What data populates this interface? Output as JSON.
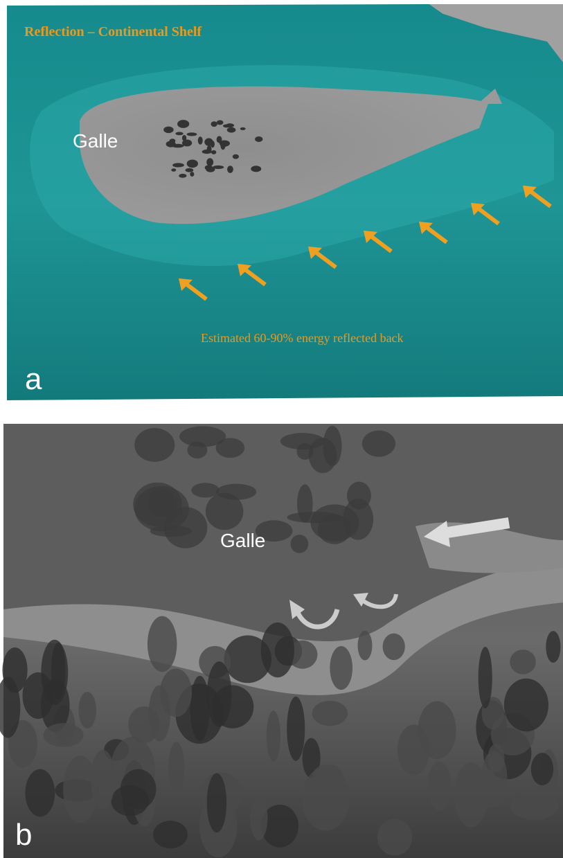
{
  "panel_a": {
    "title": "Reflection – Continental Shelf",
    "place": "Galle",
    "note": "Estimated 60-90% energy reflected back",
    "letter": "a"
  },
  "panel_b": {
    "place": "Galle",
    "letter": "b"
  }
}
